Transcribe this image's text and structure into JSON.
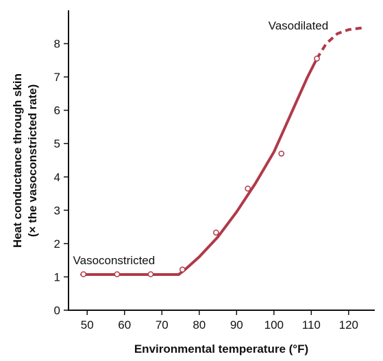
{
  "chart_data": {
    "type": "line",
    "title": "",
    "xlabel": "Environmental temperature (°F)",
    "ylabel_line1": "Heat conductance through skin",
    "ylabel_line2": "(× the vasoconstricted rate)",
    "xlim": [
      45,
      127
    ],
    "ylim": [
      0,
      9
    ],
    "xticks": [
      50,
      60,
      70,
      80,
      90,
      100,
      110,
      120
    ],
    "yticks": [
      0,
      1,
      2,
      3,
      4,
      5,
      6,
      7,
      8
    ],
    "grid": false,
    "series": [
      {
        "style": "solid",
        "color": "#b03a48",
        "x": [
          48.5,
          55,
          65,
          74.5,
          76,
          80,
          85,
          90,
          95,
          100,
          103,
          106,
          109,
          111.5
        ],
        "y": [
          1.07,
          1.07,
          1.07,
          1.07,
          1.2,
          1.6,
          2.2,
          2.95,
          3.8,
          4.75,
          5.5,
          6.25,
          7.0,
          7.55
        ]
      },
      {
        "style": "dashed",
        "color": "#b03a48",
        "x": [
          111.5,
          114,
          117,
          120,
          123.5
        ],
        "y": [
          7.55,
          8.0,
          8.3,
          8.42,
          8.47
        ]
      }
    ],
    "points": {
      "x": [
        49,
        58,
        67,
        75.5,
        84.5,
        93,
        102,
        111.5
      ],
      "y": [
        1.08,
        1.08,
        1.08,
        1.22,
        2.33,
        3.65,
        4.7,
        7.55
      ]
    },
    "annotations": [
      {
        "text": "Vasoconstricted",
        "x": 46.2,
        "y": 1.5
      },
      {
        "text": "Vasodilated",
        "x": 98.5,
        "y": 8.55
      }
    ]
  }
}
